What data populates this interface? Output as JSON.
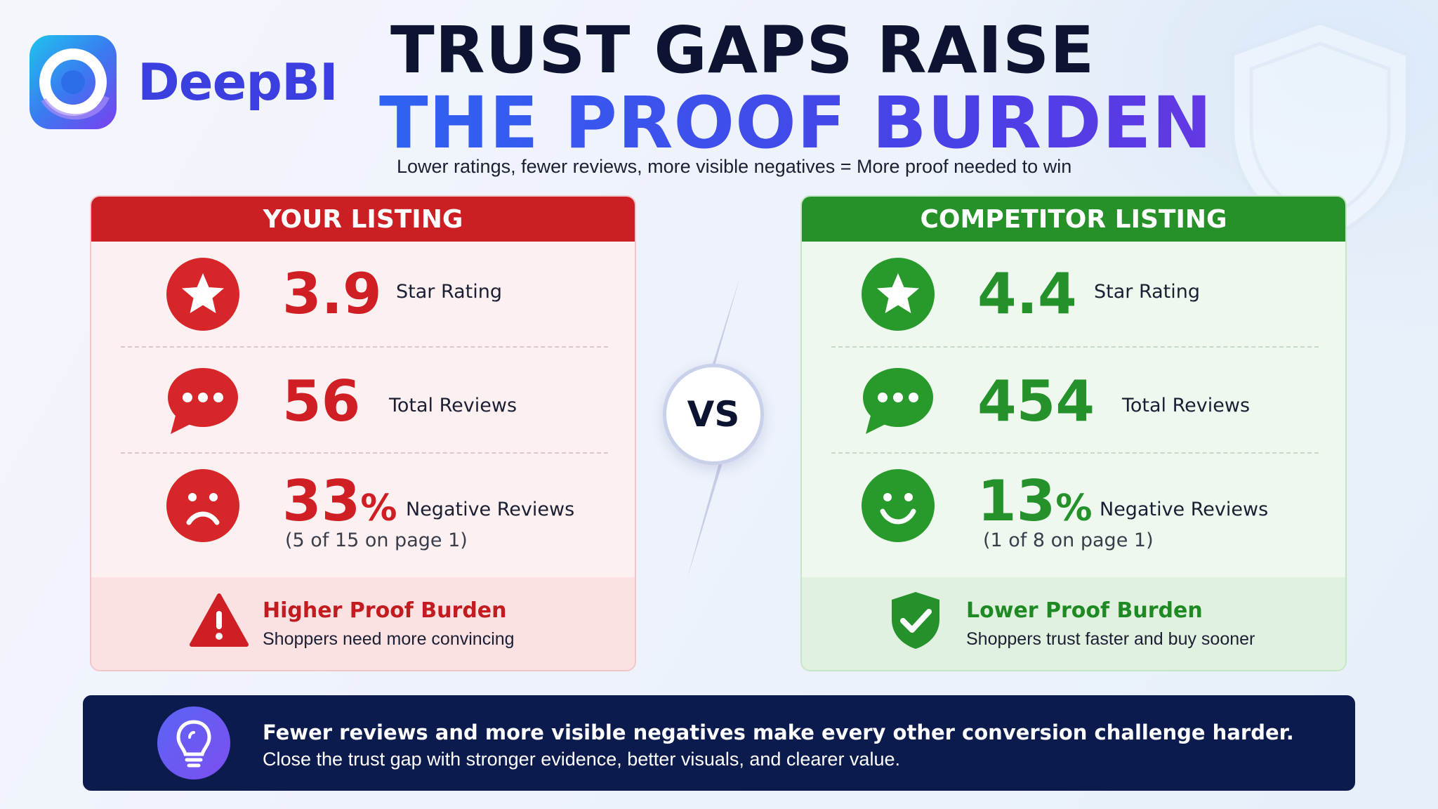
{
  "brand": {
    "name": "DeepBI",
    "icon": "deepbi-logo-icon"
  },
  "title": {
    "line1": "TRUST GAPS RAISE",
    "line2": "THE PROOF BURDEN"
  },
  "subtitle": "Lower ratings, fewer reviews, more visible negatives = More proof needed to win",
  "colors": {
    "red": "#d01f24",
    "green": "#24912a",
    "navy": "#0c1b4d",
    "accent_blue": "#3a50f0"
  },
  "your_listing": {
    "header": "YOUR LISTING",
    "rating": {
      "value": "3.9",
      "label": "Star Rating",
      "icon": "star-icon"
    },
    "reviews": {
      "value": "56",
      "label": "Total Reviews",
      "icon": "speech-bubble-icon"
    },
    "negative": {
      "value": "33",
      "unit": "%",
      "label": "Negative Reviews",
      "note": "(5 of 15 on page 1)",
      "icon": "sad-face-icon"
    },
    "footer": {
      "title": "Higher Proof Burden",
      "sub": "Shoppers need more convincing",
      "icon": "warning-icon"
    }
  },
  "vs_label": "VS",
  "competitor_listing": {
    "header": "COMPETITOR LISTING",
    "rating": {
      "value": "4.4",
      "label": "Star Rating",
      "icon": "star-icon"
    },
    "reviews": {
      "value": "454",
      "label": "Total Reviews",
      "icon": "speech-bubble-icon"
    },
    "negative": {
      "value": "13",
      "unit": "%",
      "label": "Negative Reviews",
      "note": "(1 of 8 on page 1)",
      "icon": "smiley-face-icon"
    },
    "footer": {
      "title": "Lower Proof Burden",
      "sub": "Shoppers trust faster and buy sooner",
      "icon": "shield-check-icon"
    }
  },
  "banner": {
    "line1": "Fewer reviews and more visible negatives make every other conversion challenge harder.",
    "line2": "Close the trust gap with stronger evidence, better visuals, and clearer value.",
    "icon": "lightbulb-icon"
  }
}
